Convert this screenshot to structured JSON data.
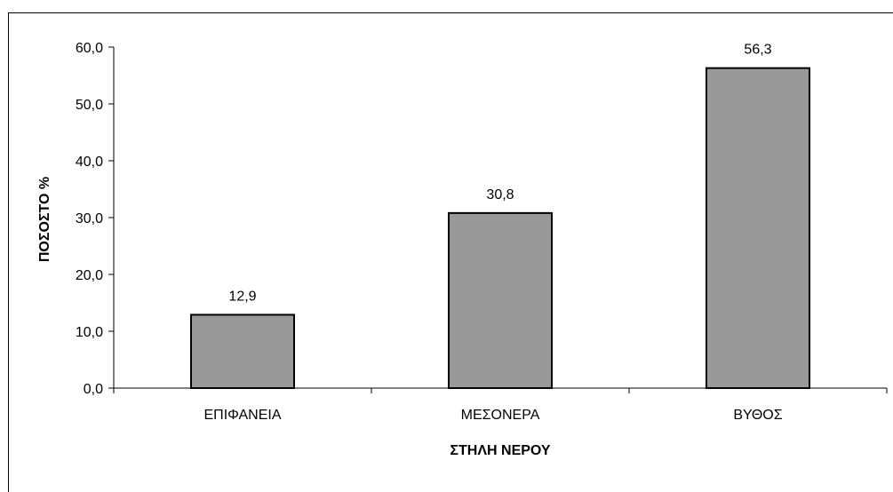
{
  "chart_data": {
    "type": "bar",
    "categories": [
      "ΕΠΙΦΑΝΕΙΑ",
      "ΜΕΣΟΝΕΡΑ",
      "ΒΥΘΟΣ"
    ],
    "values": [
      12.9,
      30.8,
      56.3
    ],
    "data_labels": [
      "12,9",
      "30,8",
      "56,3"
    ],
    "title": "",
    "xlabel": "ΣΤΗΛΗ ΝΕΡΟΥ",
    "ylabel": "ΠΟΣΟΣΤΟ %",
    "ylim": [
      0,
      60
    ],
    "yticks": [
      0,
      10,
      20,
      30,
      40,
      50,
      60
    ],
    "ytick_labels": [
      "0,0",
      "10,0",
      "20,0",
      "30,0",
      "40,0",
      "50,0",
      "60,0"
    ],
    "grid": false,
    "legend": "none",
    "bar_color": "#999999"
  }
}
